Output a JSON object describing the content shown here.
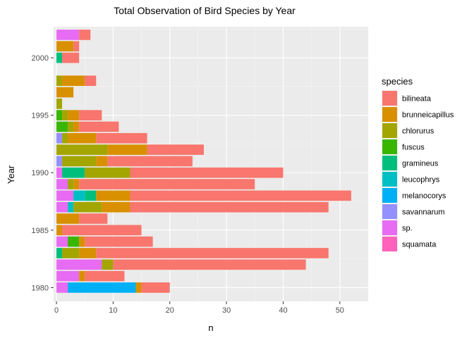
{
  "chart_data": {
    "type": "bar",
    "orientation": "horizontal",
    "stacked": true,
    "title": "Total Observation of Bird Species by Year",
    "xlabel": "n",
    "ylabel": "Year",
    "xlim": [
      -0.5,
      55
    ],
    "ylim": [
      1978.8,
      2002.7
    ],
    "x_ticks": [
      0,
      10,
      20,
      30,
      40,
      50
    ],
    "y_ticks": [
      1980,
      1985,
      1990,
      1995,
      2000
    ],
    "grid": true,
    "legend_position": "right",
    "legend_title": "species",
    "species": [
      "bilineata",
      "brunneicapillus",
      "chlorurus",
      "fuscus",
      "gramineus",
      "leucophrys",
      "melanocorys",
      "savannarum",
      "sp.",
      "squamata"
    ],
    "colors": {
      "bilineata": "#F8766D",
      "brunneicapillus": "#D89000",
      "chlorurus": "#A3A500",
      "fuscus": "#39B600",
      "gramineus": "#00BF7D",
      "leucophrys": "#00BFC4",
      "melanocorys": "#00B0F6",
      "savannarum": "#9590FF",
      "sp.": "#E76BF3",
      "squamata": "#FF62BC"
    },
    "stack_order": [
      "squamata",
      "sp.",
      "savannarum",
      "melanocorys",
      "leucophrys",
      "gramineus",
      "fuscus",
      "chlorurus",
      "brunneicapillus",
      "bilineata"
    ],
    "rows": [
      {
        "year": 1980,
        "values": {
          "sp.": 2,
          "melanocorys": 12,
          "brunneicapillus": 1,
          "bilineata": 5
        }
      },
      {
        "year": 1981,
        "values": {
          "sp.": 4,
          "brunneicapillus": 1,
          "bilineata": 7
        }
      },
      {
        "year": 1982,
        "values": {
          "sp.": 8,
          "chlorurus": 2,
          "bilineata": 34
        }
      },
      {
        "year": 1983,
        "values": {
          "gramineus": 1,
          "chlorurus": 3,
          "brunneicapillus": 3,
          "bilineata": 41
        }
      },
      {
        "year": 1984,
        "values": {
          "sp.": 2,
          "fuscus": 2,
          "brunneicapillus": 1,
          "bilineata": 12
        }
      },
      {
        "year": 1985,
        "values": {
          "brunneicapillus": 1,
          "bilineata": 14
        }
      },
      {
        "year": 1986,
        "values": {
          "brunneicapillus": 4,
          "bilineata": 5
        }
      },
      {
        "year": 1987,
        "values": {
          "sp.": 2,
          "leucophrys": 1,
          "chlorurus": 5,
          "brunneicapillus": 5,
          "bilineata": 35
        }
      },
      {
        "year": 1988,
        "values": {
          "sp.": 3,
          "leucophrys": 2,
          "gramineus": 2,
          "brunneicapillus": 6,
          "bilineata": 39
        }
      },
      {
        "year": 1989,
        "values": {
          "sp.": 2,
          "chlorurus": 1,
          "brunneicapillus": 1,
          "bilineata": 31
        }
      },
      {
        "year": 1990,
        "values": {
          "sp.": 1,
          "gramineus": 4,
          "chlorurus": 8,
          "bilineata": 27
        }
      },
      {
        "year": 1991,
        "values": {
          "savannarum": 1,
          "chlorurus": 6,
          "brunneicapillus": 2,
          "bilineata": 15
        }
      },
      {
        "year": 1992,
        "values": {
          "chlorurus": 9,
          "brunneicapillus": 7,
          "bilineata": 10
        }
      },
      {
        "year": 1993,
        "values": {
          "savannarum": 1,
          "chlorurus": 1,
          "brunneicapillus": 5,
          "bilineata": 9
        }
      },
      {
        "year": 1994,
        "values": {
          "fuscus": 2,
          "chlorurus": 1,
          "brunneicapillus": 1,
          "bilineata": 7
        }
      },
      {
        "year": 1995,
        "values": {
          "fuscus": 1,
          "chlorurus": 1,
          "brunneicapillus": 2,
          "bilineata": 4
        }
      },
      {
        "year": 1996,
        "values": {
          "chlorurus": 1
        }
      },
      {
        "year": 1997,
        "values": {
          "brunneicapillus": 3
        }
      },
      {
        "year": 1998,
        "values": {
          "chlorurus": 1,
          "brunneicapillus": 4,
          "bilineata": 2
        }
      },
      {
        "year": 2000,
        "values": {
          "gramineus": 1,
          "bilineata": 3
        }
      },
      {
        "year": 2001,
        "values": {
          "brunneicapillus": 3,
          "bilineata": 1
        }
      },
      {
        "year": 2002,
        "values": {
          "sp.": 4,
          "bilineata": 2
        }
      }
    ]
  }
}
